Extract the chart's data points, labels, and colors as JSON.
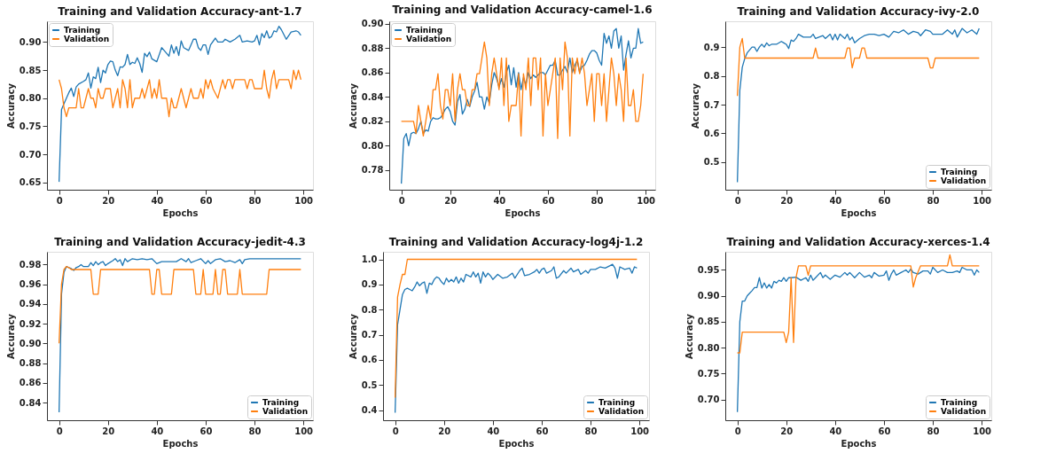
{
  "chart_data": [
    {
      "type": "line",
      "title": "Training and Validation Accuracy-ant-1.7",
      "xlabel": "Epochs",
      "ylabel": "Accuracy",
      "xlim": [
        -4.95,
        103.95
      ],
      "xticks": [
        0,
        20,
        40,
        60,
        80,
        100
      ],
      "ylim": [
        0.637,
        0.937
      ],
      "yticks": [
        {
          "value": 0.65,
          "label": "0.65"
        },
        {
          "value": 0.7,
          "label": "0.70"
        },
        {
          "value": 0.75,
          "label": "0.75"
        },
        {
          "value": 0.8,
          "label": "0.80"
        },
        {
          "value": 0.85,
          "label": "0.85"
        },
        {
          "value": 0.9,
          "label": "0.90"
        }
      ],
      "grid": false,
      "legend": "top left",
      "series": [
        {
          "name": "Training",
          "color": "#1f77b4",
          "x": [
            0,
            1,
            2,
            3,
            4,
            5,
            6,
            7,
            8,
            10,
            11,
            12,
            13,
            14,
            15,
            16,
            17,
            18,
            19,
            20,
            21,
            22,
            23,
            24,
            25,
            26,
            27,
            28,
            29,
            30,
            31,
            32,
            33,
            34,
            35,
            36,
            37,
            38,
            40,
            42,
            43,
            44,
            45,
            46,
            47,
            48,
            49,
            50,
            51,
            53,
            55,
            56,
            57,
            58,
            59,
            60,
            61,
            62,
            64,
            65,
            67,
            68,
            70,
            72,
            74,
            75,
            77,
            79,
            80,
            81,
            82,
            83,
            84,
            85,
            86,
            87,
            88,
            89,
            90,
            91,
            93,
            95,
            97,
            98,
            99
          ],
          "values": [
            0.651,
            0.78,
            0.79,
            0.8,
            0.81,
            0.818,
            0.803,
            0.82,
            0.825,
            0.83,
            0.833,
            0.845,
            0.818,
            0.838,
            0.835,
            0.855,
            0.828,
            0.85,
            0.845,
            0.86,
            0.866,
            0.865,
            0.85,
            0.84,
            0.856,
            0.855,
            0.86,
            0.878,
            0.86,
            0.864,
            0.862,
            0.872,
            0.862,
            0.846,
            0.88,
            0.874,
            0.882,
            0.87,
            0.865,
            0.89,
            0.885,
            0.88,
            0.875,
            0.895,
            0.88,
            0.892,
            0.876,
            0.902,
            0.89,
            0.885,
            0.905,
            0.905,
            0.89,
            0.885,
            0.895,
            0.895,
            0.878,
            0.895,
            0.907,
            0.9,
            0.9,
            0.905,
            0.9,
            0.905,
            0.912,
            0.9,
            0.902,
            0.9,
            0.902,
            0.912,
            0.895,
            0.915,
            0.908,
            0.92,
            0.907,
            0.91,
            0.92,
            0.918,
            0.928,
            0.922,
            0.905,
            0.918,
            0.92,
            0.918,
            0.912
          ]
        },
        {
          "name": "Validation",
          "color": "#ff7f0e",
          "x": [
            0,
            1,
            2,
            3,
            4,
            6,
            7,
            8,
            9,
            10,
            11,
            12,
            13,
            14,
            15,
            16,
            17,
            18,
            19,
            20,
            21,
            22,
            23,
            24,
            25,
            26,
            27,
            28,
            29,
            30,
            31,
            32,
            33,
            34,
            35,
            37,
            38,
            39,
            40,
            41,
            42,
            43,
            44,
            45,
            46,
            47,
            48,
            50,
            51,
            52,
            53,
            54,
            55,
            57,
            58,
            59,
            60,
            61,
            62,
            63,
            65,
            66,
            67,
            68,
            69,
            70,
            71,
            72,
            74,
            76,
            77,
            78,
            79,
            80,
            83,
            84,
            85,
            86,
            87,
            88,
            89,
            90,
            92,
            94,
            95,
            96,
            97,
            98,
            99
          ],
          "values": [
            0.833,
            0.817,
            0.783,
            0.767,
            0.783,
            0.783,
            0.783,
            0.817,
            0.783,
            0.783,
            0.8,
            0.817,
            0.8,
            0.8,
            0.783,
            0.817,
            0.8,
            0.8,
            0.817,
            0.817,
            0.817,
            0.783,
            0.8,
            0.817,
            0.783,
            0.833,
            0.817,
            0.783,
            0.833,
            0.783,
            0.8,
            0.8,
            0.8,
            0.817,
            0.8,
            0.833,
            0.8,
            0.817,
            0.8,
            0.833,
            0.8,
            0.8,
            0.8,
            0.767,
            0.8,
            0.783,
            0.783,
            0.817,
            0.8,
            0.783,
            0.8,
            0.817,
            0.8,
            0.8,
            0.817,
            0.8,
            0.833,
            0.817,
            0.833,
            0.817,
            0.8,
            0.817,
            0.833,
            0.817,
            0.833,
            0.833,
            0.817,
            0.833,
            0.833,
            0.833,
            0.817,
            0.833,
            0.833,
            0.817,
            0.817,
            0.85,
            0.817,
            0.8,
            0.833,
            0.85,
            0.817,
            0.833,
            0.833,
            0.833,
            0.817,
            0.85,
            0.833,
            0.85,
            0.833
          ]
        }
      ]
    },
    {
      "type": "line",
      "title": "Training and Validation Accuracy-camel-1.6",
      "xlabel": "Epochs",
      "ylabel": "Accuracy",
      "xlim": [
        -4.95,
        103.95
      ],
      "xticks": [
        0,
        20,
        40,
        60,
        80,
        100
      ],
      "ylim": [
        0.764,
        0.902
      ],
      "yticks": [
        {
          "value": 0.78,
          "label": "0.78"
        },
        {
          "value": 0.8,
          "label": "0.80"
        },
        {
          "value": 0.82,
          "label": "0.82"
        },
        {
          "value": 0.84,
          "label": "0.84"
        },
        {
          "value": 0.86,
          "label": "0.86"
        },
        {
          "value": 0.88,
          "label": "0.88"
        },
        {
          "value": 0.9,
          "label": "0.90"
        }
      ],
      "grid": false,
      "legend": "top left",
      "series": [
        {
          "name": "Training",
          "color": "#1f77b4",
          "x": [
            0,
            1,
            2,
            3,
            4,
            5,
            6,
            7,
            8,
            9,
            10,
            11,
            12,
            13,
            14,
            15,
            16,
            17,
            18,
            19,
            20,
            21,
            22,
            23,
            24,
            25,
            26,
            27,
            28,
            29,
            30,
            31,
            32,
            33,
            34,
            35,
            36,
            37,
            38,
            39,
            40,
            41,
            42,
            43,
            44,
            45,
            46,
            47,
            48,
            49,
            50,
            51,
            52,
            53,
            54,
            55,
            56,
            57,
            58,
            59,
            60,
            61,
            62,
            63,
            64,
            65,
            66,
            67,
            68,
            69,
            70,
            71,
            72,
            73,
            74,
            75,
            76,
            77,
            78,
            79,
            80,
            81,
            82,
            83,
            84,
            85,
            86,
            87,
            88,
            89,
            90,
            91,
            92,
            93,
            94,
            95,
            96,
            97,
            98,
            99
          ],
          "values": [
            0.769,
            0.806,
            0.81,
            0.8,
            0.81,
            0.811,
            0.81,
            0.814,
            0.82,
            0.81,
            0.813,
            0.812,
            0.82,
            0.823,
            0.822,
            0.822,
            0.823,
            0.826,
            0.83,
            0.832,
            0.828,
            0.82,
            0.817,
            0.836,
            0.842,
            0.826,
            0.83,
            0.838,
            0.832,
            0.84,
            0.845,
            0.852,
            0.84,
            0.84,
            0.83,
            0.84,
            0.835,
            0.85,
            0.86,
            0.855,
            0.848,
            0.855,
            0.848,
            0.86,
            0.866,
            0.85,
            0.864,
            0.848,
            0.86,
            0.846,
            0.856,
            0.85,
            0.86,
            0.855,
            0.858,
            0.856,
            0.858,
            0.86,
            0.86,
            0.858,
            0.862,
            0.866,
            0.866,
            0.87,
            0.858,
            0.858,
            0.862,
            0.865,
            0.86,
            0.872,
            0.86,
            0.866,
            0.87,
            0.86,
            0.865,
            0.866,
            0.87,
            0.875,
            0.878,
            0.878,
            0.876,
            0.87,
            0.866,
            0.892,
            0.884,
            0.89,
            0.88,
            0.894,
            0.896,
            0.88,
            0.89,
            0.862,
            0.875,
            0.886,
            0.872,
            0.88,
            0.88,
            0.896,
            0.884,
            0.885
          ]
        },
        {
          "name": "Validation",
          "color": "#ff7f0e",
          "x": [
            0,
            5,
            6,
            7,
            8,
            9,
            10,
            11,
            12,
            13,
            14,
            15,
            16,
            17,
            18,
            19,
            20,
            21,
            22,
            23,
            24,
            25,
            26,
            27,
            28,
            29,
            30,
            31,
            32,
            33,
            34,
            35,
            36,
            37,
            38,
            39,
            40,
            41,
            42,
            43,
            44,
            45,
            46,
            47,
            48,
            49,
            50,
            51,
            52,
            53,
            54,
            55,
            56,
            57,
            58,
            59,
            60,
            61,
            62,
            63,
            64,
            65,
            66,
            67,
            68,
            69,
            70,
            71,
            72,
            73,
            74,
            75,
            76,
            77,
            78,
            79,
            80,
            81,
            82,
            83,
            84,
            85,
            86,
            87,
            88,
            89,
            90,
            91,
            92,
            93,
            94,
            95,
            96,
            97,
            98,
            99
          ],
          "values": [
            0.82,
            0.82,
            0.81,
            0.833,
            0.82,
            0.808,
            0.82,
            0.833,
            0.822,
            0.846,
            0.846,
            0.859,
            0.833,
            0.822,
            0.846,
            0.846,
            0.833,
            0.859,
            0.82,
            0.846,
            0.859,
            0.846,
            0.846,
            0.833,
            0.833,
            0.846,
            0.846,
            0.859,
            0.859,
            0.872,
            0.885,
            0.872,
            0.833,
            0.859,
            0.872,
            0.859,
            0.846,
            0.872,
            0.833,
            0.872,
            0.82,
            0.833,
            0.833,
            0.833,
            0.859,
            0.808,
            0.859,
            0.846,
            0.872,
            0.833,
            0.872,
            0.872,
            0.846,
            0.872,
            0.808,
            0.859,
            0.833,
            0.846,
            0.859,
            0.872,
            0.806,
            0.872,
            0.846,
            0.885,
            0.872,
            0.808,
            0.872,
            0.859,
            0.872,
            0.859,
            0.872,
            0.859,
            0.833,
            0.846,
            0.859,
            0.82,
            0.859,
            0.859,
            0.833,
            0.859,
            0.82,
            0.846,
            0.872,
            0.859,
            0.833,
            0.859,
            0.846,
            0.82,
            0.872,
            0.833,
            0.833,
            0.846,
            0.82,
            0.82,
            0.833,
            0.859
          ]
        }
      ]
    },
    {
      "type": "line",
      "title": "Training and Validation Accuracy-ivy-2.0",
      "xlabel": "Epochs",
      "ylabel": "Accuracy",
      "xlim": [
        -4.95,
        103.95
      ],
      "xticks": [
        0,
        20,
        40,
        60,
        80,
        100
      ],
      "ylim": [
        0.404,
        0.99
      ],
      "yticks": [
        0.5,
        0.6,
        0.7,
        0.8,
        0.9
      ],
      "grid": false,
      "legend": "bottom right",
      "series": [
        {
          "name": "Training",
          "color": "#1f77b4",
          "x": [
            0,
            1,
            2,
            3,
            4,
            5,
            6,
            7,
            8,
            9,
            10,
            11,
            12,
            13,
            14,
            16,
            18,
            19,
            20,
            21,
            22,
            23,
            24,
            25,
            27,
            30,
            31,
            32,
            35,
            36,
            38,
            39,
            40,
            41,
            42,
            44,
            45,
            46,
            47,
            48,
            50,
            52,
            54,
            56,
            58,
            60,
            62,
            64,
            66,
            68,
            70,
            72,
            74,
            75,
            77,
            79,
            80,
            84,
            86,
            88,
            89,
            90,
            92,
            94,
            96,
            98,
            99
          ],
          "values": [
            0.43,
            0.75,
            0.83,
            0.86,
            0.88,
            0.89,
            0.9,
            0.9,
            0.885,
            0.9,
            0.91,
            0.9,
            0.915,
            0.905,
            0.91,
            0.91,
            0.92,
            0.915,
            0.91,
            0.895,
            0.925,
            0.92,
            0.93,
            0.945,
            0.935,
            0.935,
            0.945,
            0.93,
            0.94,
            0.93,
            0.945,
            0.925,
            0.945,
            0.925,
            0.945,
            0.93,
            0.945,
            0.925,
            0.935,
            0.915,
            0.93,
            0.94,
            0.945,
            0.945,
            0.94,
            0.945,
            0.935,
            0.955,
            0.95,
            0.96,
            0.945,
            0.955,
            0.95,
            0.94,
            0.96,
            0.955,
            0.945,
            0.945,
            0.96,
            0.945,
            0.96,
            0.935,
            0.965,
            0.95,
            0.96,
            0.945,
            0.965
          ]
        },
        {
          "name": "Validation",
          "color": "#ff7f0e",
          "x": [
            0,
            1,
            2,
            3,
            31,
            32,
            33,
            44,
            45,
            46,
            47,
            48,
            50,
            51,
            52,
            53,
            78,
            79,
            80,
            81,
            99
          ],
          "values": [
            0.73,
            0.9,
            0.93,
            0.862,
            0.862,
            0.897,
            0.862,
            0.862,
            0.897,
            0.897,
            0.828,
            0.862,
            0.862,
            0.897,
            0.897,
            0.862,
            0.862,
            0.828,
            0.828,
            0.862,
            0.862
          ]
        }
      ]
    },
    {
      "type": "line",
      "title": "Training and Validation Accuracy-jedit-4.3",
      "xlabel": "Epochs",
      "ylabel": "Accuracy",
      "xlim": [
        -4.95,
        103.95
      ],
      "xticks": [
        0,
        20,
        40,
        60,
        80,
        100
      ],
      "ylim": [
        0.822,
        0.993
      ],
      "yticks": [
        0.84,
        0.86,
        0.88,
        {
          "value": 0.9,
          "label": "0.90"
        },
        0.92,
        0.94,
        0.96,
        0.98
      ],
      "grid": false,
      "legend": "bottom right",
      "series": [
        {
          "name": "Training",
          "color": "#1f77b4",
          "x": [
            0,
            1,
            2,
            3,
            4,
            5,
            6,
            7,
            8,
            9,
            10,
            11,
            12,
            13,
            14,
            15,
            16,
            17,
            18,
            19,
            20,
            22,
            23,
            24,
            25,
            26,
            27,
            28,
            30,
            32,
            34,
            36,
            38,
            40,
            42,
            48,
            50,
            52,
            53,
            54,
            56,
            58,
            60,
            61,
            62,
            64,
            66,
            68,
            70,
            72,
            74,
            75,
            76,
            78,
            99
          ],
          "values": [
            0.83,
            0.95,
            0.972,
            0.978,
            0.977,
            0.976,
            0.974,
            0.977,
            0.978,
            0.98,
            0.978,
            0.978,
            0.978,
            0.982,
            0.979,
            0.983,
            0.98,
            0.982,
            0.983,
            0.979,
            0.981,
            0.984,
            0.986,
            0.983,
            0.985,
            0.979,
            0.986,
            0.983,
            0.986,
            0.985,
            0.986,
            0.985,
            0.986,
            0.981,
            0.983,
            0.983,
            0.986,
            0.983,
            0.986,
            0.982,
            0.984,
            0.986,
            0.981,
            0.984,
            0.981,
            0.985,
            0.986,
            0.983,
            0.984,
            0.982,
            0.985,
            0.981,
            0.985,
            0.986,
            0.986
          ]
        },
        {
          "name": "Validation",
          "color": "#ff7f0e",
          "x": [
            0,
            1,
            2,
            3,
            4,
            5,
            13,
            14,
            16,
            17,
            37,
            38,
            39,
            40,
            41,
            42,
            46,
            47,
            55,
            56,
            58,
            59,
            60,
            63,
            64,
            65,
            66,
            67,
            68,
            69,
            73,
            74,
            75,
            85,
            86,
            99
          ],
          "values": [
            0.9,
            0.96,
            0.975,
            0.978,
            0.977,
            0.975,
            0.975,
            0.95,
            0.95,
            0.975,
            0.975,
            0.95,
            0.95,
            0.975,
            0.975,
            0.95,
            0.95,
            0.975,
            0.975,
            0.95,
            0.95,
            0.975,
            0.95,
            0.95,
            0.975,
            0.95,
            0.95,
            0.975,
            0.975,
            0.95,
            0.95,
            0.975,
            0.95,
            0.95,
            0.975,
            0.975
          ]
        }
      ]
    },
    {
      "type": "line",
      "title": "Training and Validation Accuracy-log4j-1.2",
      "xlabel": "Epochs",
      "ylabel": "Accuracy",
      "xlim": [
        -4.95,
        103.95
      ],
      "xticks": [
        0,
        20,
        40,
        60,
        80,
        100
      ],
      "ylim": [
        0.36,
        1.03
      ],
      "yticks": [
        0.4,
        0.5,
        0.6,
        0.7,
        0.8,
        0.9,
        {
          "value": 1,
          "label": "1.0"
        }
      ],
      "grid": false,
      "legend": "bottom right",
      "series": [
        {
          "name": "Training",
          "color": "#1f77b4",
          "x": [
            0,
            1,
            2,
            3,
            4,
            5,
            6,
            7,
            8,
            9,
            10,
            11,
            12,
            13,
            14,
            15,
            16,
            17,
            18,
            19,
            20,
            21,
            22,
            23,
            24,
            25,
            26,
            27,
            28,
            29,
            31,
            32,
            33,
            34,
            35,
            36,
            37,
            38,
            39,
            40,
            42,
            44,
            46,
            48,
            49,
            51,
            52,
            53,
            55,
            57,
            58,
            59,
            60,
            61,
            62,
            64,
            65,
            66,
            67,
            69,
            70,
            72,
            73,
            75,
            76,
            78,
            79,
            80,
            82,
            84,
            86,
            88,
            89,
            90,
            91,
            92,
            94,
            96,
            97,
            98,
            99
          ],
          "values": [
            0.39,
            0.74,
            0.8,
            0.86,
            0.88,
            0.885,
            0.88,
            0.875,
            0.89,
            0.91,
            0.895,
            0.905,
            0.91,
            0.865,
            0.905,
            0.9,
            0.92,
            0.93,
            0.925,
            0.91,
            0.9,
            0.925,
            0.91,
            0.92,
            0.91,
            0.93,
            0.905,
            0.925,
            0.91,
            0.94,
            0.93,
            0.95,
            0.93,
            0.945,
            0.905,
            0.95,
            0.93,
            0.945,
            0.935,
            0.92,
            0.94,
            0.925,
            0.93,
            0.945,
            0.925,
            0.955,
            0.965,
            0.935,
            0.94,
            0.95,
            0.96,
            0.945,
            0.96,
            0.965,
            0.945,
            0.955,
            0.97,
            0.925,
            0.93,
            0.955,
            0.945,
            0.965,
            0.95,
            0.96,
            0.94,
            0.955,
            0.945,
            0.96,
            0.96,
            0.97,
            0.965,
            0.975,
            0.98,
            0.965,
            0.925,
            0.97,
            0.96,
            0.965,
            0.945,
            0.97,
            0.965
          ]
        },
        {
          "name": "Validation",
          "color": "#ff7f0e",
          "x": [
            0,
            1,
            2,
            3,
            4,
            5,
            99
          ],
          "values": [
            0.45,
            0.85,
            0.9,
            0.94,
            0.94,
            1.0,
            1.0
          ]
        }
      ]
    },
    {
      "type": "line",
      "title": "Training and Validation Accuracy-xerces-1.4",
      "xlabel": "Epochs",
      "ylabel": "Accuracy",
      "xlim": [
        -4.95,
        103.95
      ],
      "xticks": [
        0,
        20,
        40,
        60,
        80,
        100
      ],
      "ylim": [
        0.66,
        0.985
      ],
      "yticks": [
        {
          "value": 0.7,
          "label": "0.70"
        },
        0.75,
        {
          "value": 0.8,
          "label": "0.80"
        },
        0.85,
        {
          "value": 0.9,
          "label": "0.90"
        },
        0.95
      ],
      "grid": false,
      "legend": "bottom right",
      "series": [
        {
          "name": "Training",
          "color": "#1f77b4",
          "x": [
            0,
            1,
            2,
            3,
            4,
            5,
            6,
            7,
            8,
            9,
            10,
            11,
            12,
            13,
            14,
            15,
            16,
            17,
            18,
            19,
            20,
            21,
            22,
            24,
            26,
            28,
            29,
            30,
            31,
            32,
            34,
            35,
            36,
            38,
            40,
            42,
            44,
            45,
            46,
            48,
            50,
            52,
            54,
            55,
            56,
            58,
            60,
            61,
            62,
            63,
            64,
            65,
            67,
            69,
            70,
            71,
            72,
            74,
            76,
            78,
            79,
            80,
            82,
            84,
            86,
            88,
            90,
            91,
            92,
            94,
            96,
            97,
            98,
            99
          ],
          "values": [
            0.676,
            0.85,
            0.89,
            0.89,
            0.9,
            0.905,
            0.91,
            0.916,
            0.916,
            0.935,
            0.915,
            0.925,
            0.915,
            0.922,
            0.915,
            0.928,
            0.925,
            0.93,
            0.928,
            0.935,
            0.928,
            0.935,
            0.935,
            0.936,
            0.93,
            0.935,
            0.928,
            0.94,
            0.93,
            0.935,
            0.945,
            0.935,
            0.94,
            0.932,
            0.94,
            0.936,
            0.945,
            0.94,
            0.945,
            0.935,
            0.945,
            0.936,
            0.94,
            0.935,
            0.945,
            0.938,
            0.94,
            0.948,
            0.93,
            0.942,
            0.95,
            0.94,
            0.945,
            0.95,
            0.945,
            0.952,
            0.945,
            0.942,
            0.948,
            0.948,
            0.942,
            0.955,
            0.945,
            0.95,
            0.945,
            0.945,
            0.948,
            0.945,
            0.955,
            0.95,
            0.95,
            0.94,
            0.95,
            0.945
          ]
        },
        {
          "name": "Validation",
          "color": "#ff7f0e",
          "x": [
            0,
            1,
            2,
            19,
            20,
            21,
            22,
            23,
            24,
            25,
            28,
            29,
            30,
            71,
            72,
            73,
            75,
            86,
            87,
            88,
            99
          ],
          "values": [
            0.79,
            0.79,
            0.83,
            0.83,
            0.81,
            0.83,
            0.935,
            0.81,
            0.935,
            0.958,
            0.958,
            0.94,
            0.958,
            0.958,
            0.917,
            0.935,
            0.958,
            0.958,
            0.979,
            0.958,
            0.958
          ]
        }
      ]
    }
  ]
}
